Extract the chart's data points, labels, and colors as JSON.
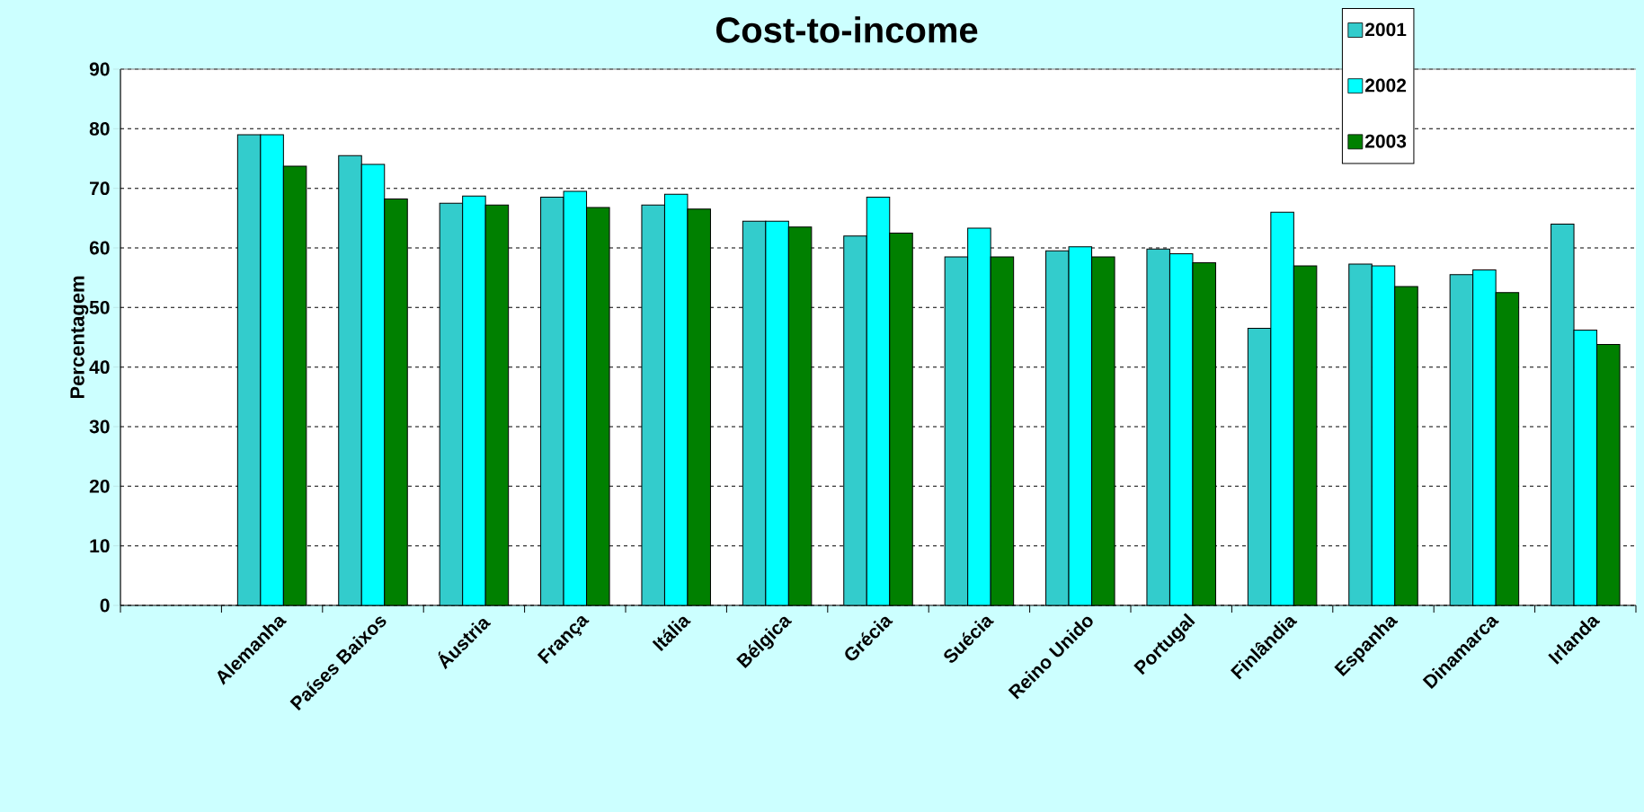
{
  "chart_data": {
    "type": "bar",
    "title": "Cost-to-income",
    "ylabel": "Percentagem",
    "categories": [
      null,
      "Alemanha",
      "Países Baixos",
      "Áustria",
      "França",
      "Itália",
      "Bélgica",
      "Grécia",
      "Suécia",
      "Reino Unido",
      "Portugal",
      "Finlândia",
      "Espanha",
      "Dinamarca",
      "Irlanda"
    ],
    "series": [
      {
        "name": "2001",
        "color": "#33cccc",
        "values": [
          null,
          79,
          75.5,
          67.5,
          68.5,
          67.2,
          64.5,
          62,
          58.5,
          59.5,
          59.8,
          46.5,
          57.3,
          55.5,
          64
        ]
      },
      {
        "name": "2002",
        "color": "#00ffff",
        "values": [
          null,
          79,
          74,
          68.7,
          69.5,
          69,
          64.5,
          68.5,
          63.3,
          60.2,
          59,
          66,
          57,
          56.3,
          46.2
        ]
      },
      {
        "name": "2003",
        "color": "#008000",
        "values": [
          null,
          73.7,
          68.2,
          67.2,
          66.8,
          66.5,
          63.5,
          62.5,
          58.5,
          58.5,
          57.5,
          57,
          53.5,
          52.5,
          43.8
        ]
      }
    ],
    "ylim": [
      0,
      90
    ],
    "yticks": [
      0,
      10,
      20,
      30,
      40,
      50,
      60,
      70,
      80,
      90
    ],
    "grid": "y",
    "legend": "top right"
  }
}
